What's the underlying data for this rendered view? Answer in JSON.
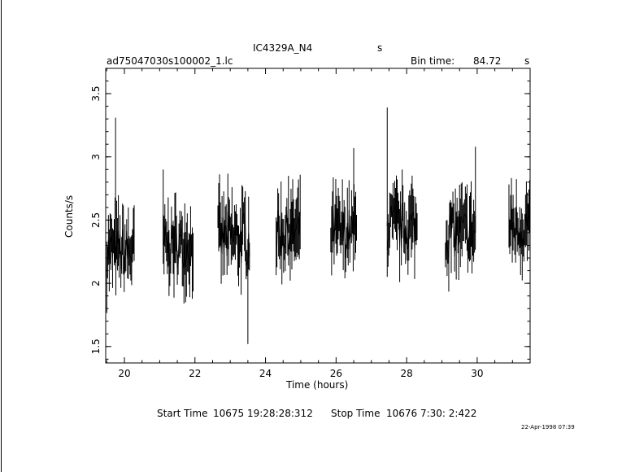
{
  "header": {
    "source_name": "IC4329A_N4",
    "source_unit": "s",
    "file_name": "ad75047030s100002_1.lc",
    "bin_time_label": "Bin time:",
    "bin_time_value": "84.72",
    "bin_time_unit": "s"
  },
  "footer": {
    "start_label": "Start Time",
    "start_value": "10675 19:28:28:312",
    "stop_label": "Stop Time",
    "stop_value": "10676  7:30: 2:422",
    "print_date": "22-Apr-1998 07:39"
  },
  "chart_data": {
    "type": "line",
    "xlabel": "Time (hours)",
    "ylabel": "Counts/s",
    "xlim": [
      19.47,
      31.5
    ],
    "ylim": [
      1.37,
      3.7
    ],
    "xticks": [
      20,
      22,
      24,
      26,
      28,
      30
    ],
    "xtick_labels": [
      "20",
      "22",
      "24",
      "26",
      "28",
      "30"
    ],
    "yticks": [
      1.5,
      2,
      2.5,
      3,
      3.5
    ],
    "ytick_labels": [
      "1.5",
      "2",
      "2.5",
      "3",
      "3.5"
    ],
    "grid": false,
    "series": [
      {
        "segments": [
          {
            "x_start": 19.5,
            "x_end": 20.3,
            "center": 2.25,
            "spread": 0.45,
            "peak": [
              19.75,
              3.31
            ]
          },
          {
            "x_start": 21.1,
            "x_end": 21.95,
            "center": 2.3,
            "spread": 0.4,
            "peak": [
              21.1,
              2.9
            ]
          },
          {
            "x_start": 22.65,
            "x_end": 23.55,
            "center": 2.35,
            "spread": 0.5,
            "peak": [
              23.5,
              1.52
            ]
          },
          {
            "x_start": 24.3,
            "x_end": 25.0,
            "center": 2.4,
            "spread": 0.4,
            "peak": [
              24.65,
              2.85
            ]
          },
          {
            "x_start": 25.85,
            "x_end": 26.6,
            "center": 2.4,
            "spread": 0.45,
            "peak": [
              26.5,
              3.07
            ]
          },
          {
            "x_start": 27.45,
            "x_end": 28.3,
            "center": 2.45,
            "spread": 0.45,
            "peak": [
              27.45,
              3.39
            ]
          },
          {
            "x_start": 29.1,
            "x_end": 29.95,
            "center": 2.4,
            "spread": 0.45,
            "peak": [
              29.95,
              3.08
            ]
          },
          {
            "x_start": 30.9,
            "x_end": 31.5,
            "center": 2.45,
            "spread": 0.45,
            "peak": [
              31.5,
              3.15
            ]
          }
        ]
      }
    ]
  }
}
